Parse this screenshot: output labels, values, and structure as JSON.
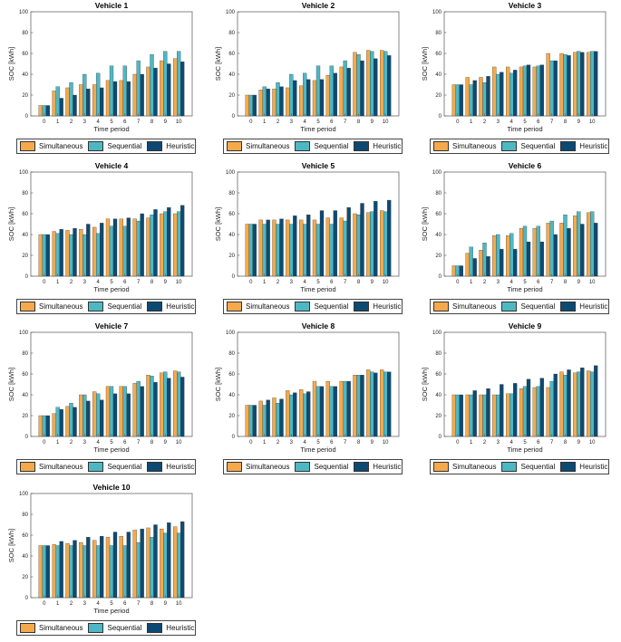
{
  "legend": {
    "simultaneous": "Simultaneous",
    "sequential": "Sequential",
    "heuristic": "Heuristic"
  },
  "colors": {
    "simultaneous": "#F5A94B",
    "sequential": "#4DB8C4",
    "heuristic": "#0D4A73"
  },
  "chart_data": [
    {
      "type": "bar",
      "title": "Vehicle 1",
      "xlabel": "Time period",
      "ylabel": "SOC [kWh]",
      "categories": [
        "0",
        "1",
        "2",
        "3",
        "4",
        "5",
        "6",
        "7",
        "8",
        "9",
        "10"
      ],
      "ylim": [
        0,
        100
      ],
      "yticks": [
        0,
        20,
        40,
        60,
        80,
        100
      ],
      "grid": false,
      "series": [
        {
          "name": "Simultaneous",
          "values": [
            10,
            24,
            27,
            30,
            30,
            34,
            34,
            40,
            47,
            53,
            55
          ]
        },
        {
          "name": "Sequential",
          "values": [
            10,
            28,
            32,
            40,
            41,
            48,
            48,
            53,
            59,
            62,
            62
          ]
        },
        {
          "name": "Heuristic",
          "values": [
            10,
            17,
            20,
            26,
            27,
            33,
            33,
            40,
            46,
            50,
            52
          ]
        }
      ]
    },
    {
      "type": "bar",
      "title": "Vehicle 2",
      "xlabel": "Time period",
      "ylabel": "SOC [kWh]",
      "categories": [
        "0",
        "1",
        "2",
        "3",
        "4",
        "5",
        "6",
        "7",
        "8",
        "9",
        "10"
      ],
      "ylim": [
        0,
        100
      ],
      "yticks": [
        0,
        20,
        40,
        60,
        80,
        100
      ],
      "grid": false,
      "series": [
        {
          "name": "Simultaneous",
          "values": [
            20,
            25,
            26,
            27,
            29,
            34,
            39,
            47,
            61,
            63,
            63
          ]
        },
        {
          "name": "Sequential",
          "values": [
            20,
            28,
            32,
            40,
            41,
            48,
            48,
            53,
            59,
            62,
            62
          ]
        },
        {
          "name": "Heuristic",
          "values": [
            20,
            26,
            28,
            34,
            35,
            35,
            41,
            46,
            53,
            55,
            58
          ]
        }
      ]
    },
    {
      "type": "bar",
      "title": "Vehicle 3",
      "xlabel": "Time period",
      "ylabel": "SOC [kWh]",
      "categories": [
        "0",
        "1",
        "2",
        "3",
        "4",
        "5",
        "6",
        "7",
        "8",
        "9",
        "10"
      ],
      "ylim": [
        0,
        100
      ],
      "yticks": [
        0,
        20,
        40,
        60,
        80,
        100
      ],
      "grid": false,
      "series": [
        {
          "name": "Simultaneous",
          "values": [
            30,
            37,
            37,
            47,
            47,
            47,
            47,
            60,
            60,
            61,
            61
          ]
        },
        {
          "name": "Sequential",
          "values": [
            30,
            30,
            32,
            40,
            41,
            48,
            48,
            53,
            59,
            62,
            62
          ]
        },
        {
          "name": "Heuristic",
          "values": [
            30,
            34,
            38,
            42,
            44,
            49,
            49,
            53,
            58,
            61,
            62
          ]
        }
      ]
    },
    {
      "type": "bar",
      "title": "Vehicle 4",
      "xlabel": "Time period",
      "ylabel": "SOC [kWh]",
      "categories": [
        "0",
        "1",
        "2",
        "3",
        "4",
        "5",
        "6",
        "7",
        "8",
        "9",
        "10"
      ],
      "ylim": [
        0,
        100
      ],
      "yticks": [
        0,
        20,
        40,
        60,
        80,
        100
      ],
      "grid": false,
      "series": [
        {
          "name": "Simultaneous",
          "values": [
            40,
            43,
            44,
            45,
            47,
            55,
            55,
            55,
            56,
            60,
            60
          ]
        },
        {
          "name": "Sequential",
          "values": [
            40,
            41,
            40,
            40,
            41,
            48,
            48,
            53,
            59,
            62,
            62
          ]
        },
        {
          "name": "Heuristic",
          "values": [
            40,
            45,
            46,
            50,
            51,
            55,
            56,
            60,
            64,
            66,
            68
          ]
        }
      ]
    },
    {
      "type": "bar",
      "title": "Vehicle 5",
      "xlabel": "Time period",
      "ylabel": "SOC [kWh]",
      "categories": [
        "0",
        "1",
        "2",
        "3",
        "4",
        "5",
        "6",
        "7",
        "8",
        "9",
        "10"
      ],
      "ylim": [
        0,
        100
      ],
      "yticks": [
        0,
        20,
        40,
        60,
        80,
        100
      ],
      "grid": false,
      "series": [
        {
          "name": "Simultaneous",
          "values": [
            50,
            54,
            54,
            54,
            54,
            54,
            56,
            56,
            60,
            61,
            63
          ]
        },
        {
          "name": "Sequential",
          "values": [
            50,
            50,
            50,
            50,
            50,
            50,
            50,
            53,
            59,
            62,
            62
          ]
        },
        {
          "name": "Heuristic",
          "values": [
            50,
            54,
            55,
            58,
            59,
            63,
            63,
            66,
            70,
            72,
            73
          ]
        }
      ]
    },
    {
      "type": "bar",
      "title": "Vehicle 6",
      "xlabel": "Time period",
      "ylabel": "SOC [kWh]",
      "categories": [
        "0",
        "1",
        "2",
        "3",
        "4",
        "5",
        "6",
        "7",
        "8",
        "9",
        "10"
      ],
      "ylim": [
        0,
        100
      ],
      "yticks": [
        0,
        20,
        40,
        60,
        80,
        100
      ],
      "grid": false,
      "series": [
        {
          "name": "Simultaneous",
          "values": [
            10,
            22,
            25,
            39,
            39,
            46,
            46,
            51,
            51,
            58,
            61
          ]
        },
        {
          "name": "Sequential",
          "values": [
            10,
            28,
            32,
            40,
            41,
            48,
            48,
            53,
            59,
            62,
            62
          ]
        },
        {
          "name": "Heuristic",
          "values": [
            10,
            17,
            19,
            26,
            26,
            33,
            33,
            40,
            46,
            50,
            51
          ]
        }
      ]
    },
    {
      "type": "bar",
      "title": "Vehicle 7",
      "xlabel": "Time period",
      "ylabel": "SOC [kWh]",
      "categories": [
        "0",
        "1",
        "2",
        "3",
        "4",
        "5",
        "6",
        "7",
        "8",
        "9",
        "10"
      ],
      "ylim": [
        0,
        100
      ],
      "yticks": [
        0,
        20,
        40,
        60,
        80,
        100
      ],
      "grid": false,
      "series": [
        {
          "name": "Simultaneous",
          "values": [
            20,
            22,
            29,
            40,
            43,
            48,
            48,
            51,
            59,
            61,
            63
          ]
        },
        {
          "name": "Sequential",
          "values": [
            20,
            28,
            32,
            40,
            41,
            48,
            48,
            53,
            58,
            62,
            62
          ]
        },
        {
          "name": "Heuristic",
          "values": [
            20,
            26,
            28,
            34,
            35,
            41,
            41,
            48,
            52,
            56,
            57
          ]
        }
      ]
    },
    {
      "type": "bar",
      "title": "Vehicle 8",
      "xlabel": "Time period",
      "ylabel": "SOC [kWh]",
      "categories": [
        "0",
        "1",
        "2",
        "3",
        "4",
        "5",
        "6",
        "7",
        "8",
        "9",
        "10"
      ],
      "ylim": [
        0,
        100
      ],
      "yticks": [
        0,
        20,
        40,
        60,
        80,
        100
      ],
      "grid": false,
      "series": [
        {
          "name": "Simultaneous",
          "values": [
            30,
            34,
            37,
            44,
            45,
            53,
            53,
            53,
            59,
            64,
            64
          ]
        },
        {
          "name": "Sequential",
          "values": [
            30,
            30,
            32,
            40,
            41,
            48,
            48,
            53,
            59,
            62,
            62
          ]
        },
        {
          "name": "Heuristic",
          "values": [
            30,
            35,
            36,
            42,
            43,
            48,
            48,
            53,
            59,
            61,
            62
          ]
        }
      ]
    },
    {
      "type": "bar",
      "title": "Vehicle 9",
      "xlabel": "Time period",
      "ylabel": "SOC [kWh]",
      "categories": [
        "0",
        "1",
        "2",
        "3",
        "4",
        "5",
        "6",
        "7",
        "8",
        "9",
        "10"
      ],
      "ylim": [
        0,
        100
      ],
      "yticks": [
        0,
        20,
        40,
        60,
        80,
        100
      ],
      "grid": false,
      "series": [
        {
          "name": "Simultaneous",
          "values": [
            40,
            40,
            40,
            40,
            41,
            46,
            47,
            47,
            62,
            61,
            63
          ]
        },
        {
          "name": "Sequential",
          "values": [
            40,
            40,
            40,
            40,
            41,
            48,
            48,
            53,
            59,
            62,
            62
          ]
        },
        {
          "name": "Heuristic",
          "values": [
            40,
            44,
            46,
            50,
            51,
            55,
            56,
            60,
            64,
            66,
            68
          ]
        }
      ]
    },
    {
      "type": "bar",
      "title": "Vehicle 10",
      "xlabel": "Time period",
      "ylabel": "SOC [kWh]",
      "categories": [
        "0",
        "1",
        "2",
        "3",
        "4",
        "5",
        "6",
        "7",
        "8",
        "9",
        "10"
      ],
      "ylim": [
        0,
        100
      ],
      "yticks": [
        0,
        20,
        40,
        60,
        80,
        100
      ],
      "grid": false,
      "series": [
        {
          "name": "Simultaneous",
          "values": [
            50,
            51,
            52,
            53,
            55,
            58,
            59,
            65,
            67,
            66,
            68
          ]
        },
        {
          "name": "Sequential",
          "values": [
            50,
            50,
            50,
            50,
            50,
            50,
            50,
            53,
            58,
            62,
            62
          ]
        },
        {
          "name": "Heuristic",
          "values": [
            50,
            54,
            55,
            58,
            59,
            63,
            63,
            66,
            70,
            72,
            73
          ]
        }
      ]
    }
  ]
}
